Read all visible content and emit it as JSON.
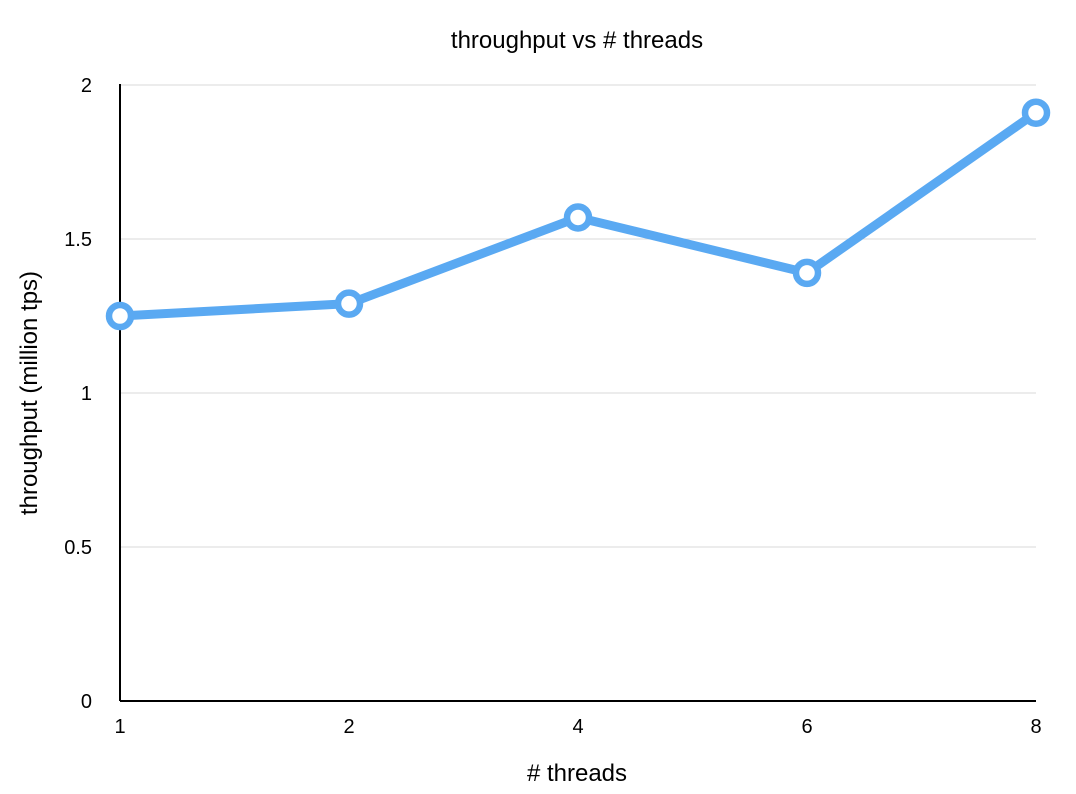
{
  "chart_data": {
    "type": "line",
    "title": "throughput vs # threads",
    "xlabel": "# threads",
    "ylabel": "throughput (million tps)",
    "categories": [
      "1",
      "2",
      "4",
      "6",
      "8"
    ],
    "series": [
      {
        "name": "throughput",
        "color": "#5aa9f2",
        "values": [
          1.25,
          1.29,
          1.57,
          1.39,
          1.91
        ]
      }
    ],
    "ylim": [
      0,
      2
    ],
    "yticks": [
      0,
      0.5,
      1,
      1.5,
      2
    ],
    "ytick_labels": [
      "0",
      "0.5",
      "1",
      "1.5",
      "2"
    ],
    "grid": true,
    "legend": "none"
  }
}
